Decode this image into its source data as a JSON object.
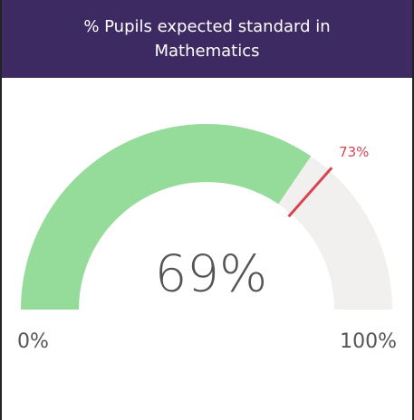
{
  "chart_data": {
    "type": "gauge",
    "title": "% Pupils expected standard in Mathematics",
    "value": 69,
    "value_label": "69%",
    "target": 73,
    "target_label": "73%",
    "ylim": [
      0,
      100
    ],
    "yticks": [
      {
        "value": 0,
        "label": "0%"
      },
      {
        "value": 100,
        "label": "100%"
      }
    ],
    "color": "#95dc9b",
    "track_color": "#f2f0ee",
    "target_color": "#d64550"
  }
}
